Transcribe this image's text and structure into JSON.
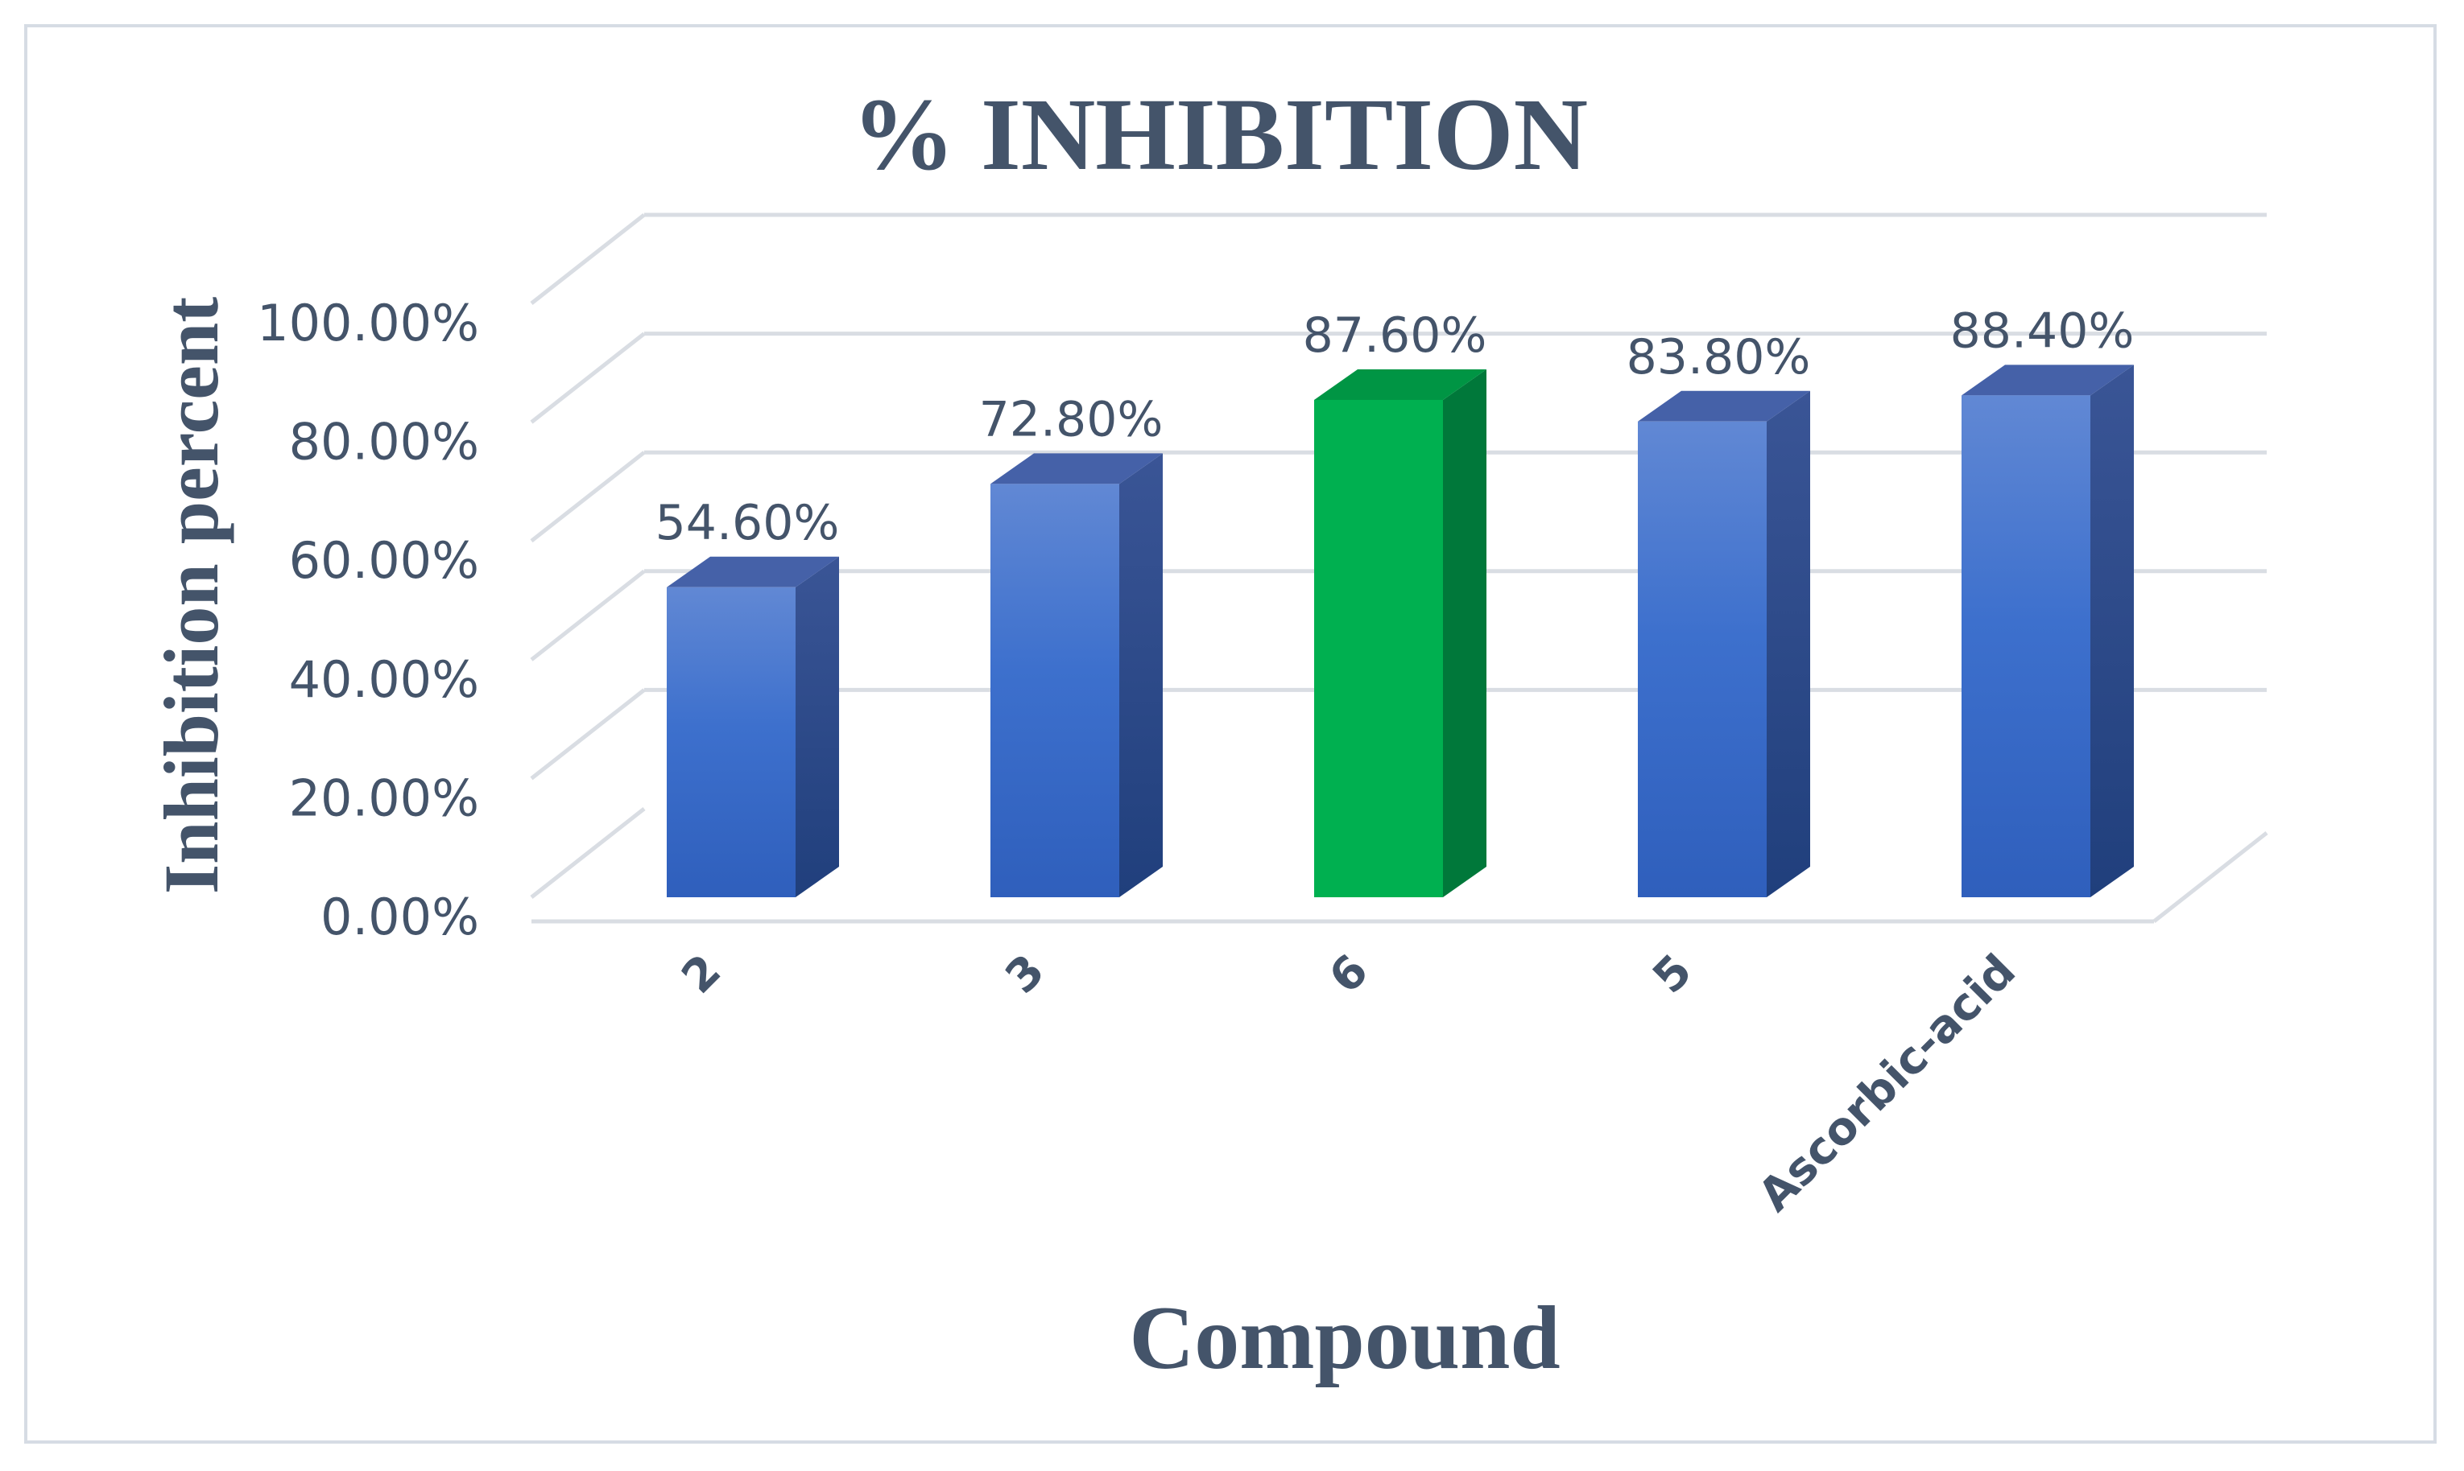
{
  "chart_data": {
    "type": "bar",
    "title": "% INHIBITION",
    "xlabel": "Compound",
    "ylabel": "Inhibition percent",
    "categories": [
      "2",
      "3",
      "6",
      "5",
      "Ascorbic-acid"
    ],
    "values": [
      54.6,
      72.8,
      87.6,
      83.8,
      88.4
    ],
    "data_labels": [
      "54.60%",
      "72.80%",
      "87.60%",
      "83.80%",
      "88.40%"
    ],
    "y_ticks": [
      "0.00%",
      "20.00%",
      "40.00%",
      "60.00%",
      "80.00%",
      "100.00%"
    ],
    "ylim": [
      0,
      100
    ],
    "grid": true,
    "style": "3d-column",
    "highlight_index": 2,
    "colors": {
      "bar": "#3f6fcc",
      "bar_highlight": "#00b050",
      "text": "#44546a",
      "grid": "#d9dde3"
    }
  }
}
